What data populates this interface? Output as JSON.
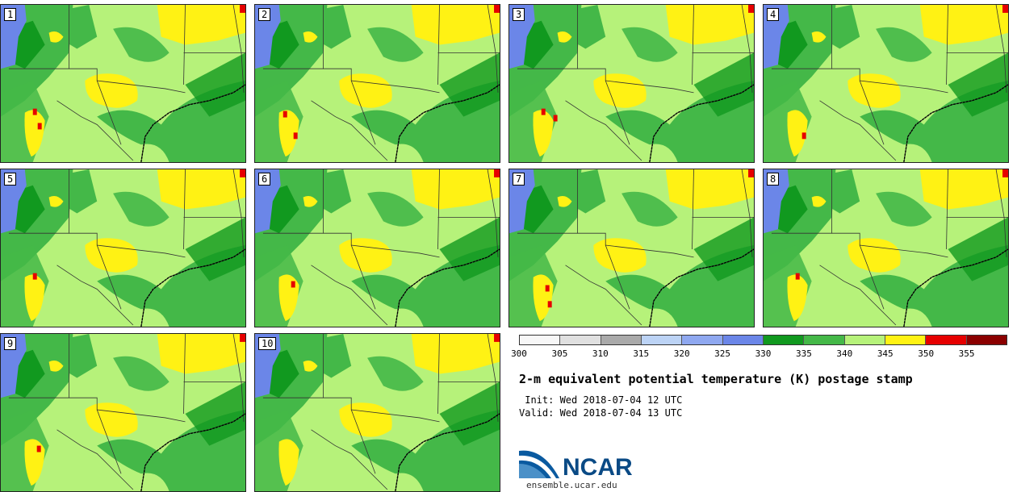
{
  "panels": [
    {
      "label": "1",
      "hot": [
        [
          40,
          130
        ],
        [
          46,
          148
        ]
      ]
    },
    {
      "label": "2",
      "hot": [
        [
          35,
          133
        ],
        [
          48,
          160
        ]
      ]
    },
    {
      "label": "3",
      "hot": [
        [
          40,
          130
        ],
        [
          55,
          138
        ]
      ]
    },
    {
      "label": "4",
      "hot": [
        [
          48,
          160
        ]
      ]
    },
    {
      "label": "5",
      "hot": [
        [
          40,
          130
        ]
      ]
    },
    {
      "label": "6",
      "hot": [
        [
          45,
          140
        ]
      ]
    },
    {
      "label": "7",
      "hot": [
        [
          45,
          145
        ],
        [
          48,
          165
        ]
      ]
    },
    {
      "label": "8",
      "hot": [
        [
          40,
          130
        ]
      ]
    },
    {
      "label": "9",
      "hot": [
        [
          45,
          140
        ]
      ]
    },
    {
      "label": "10",
      "hot": []
    }
  ],
  "colorbar": {
    "ticks": [
      "300",
      "305",
      "310",
      "315",
      "320",
      "325",
      "330",
      "335",
      "340",
      "345",
      "350",
      "355"
    ],
    "colors": [
      "#f7f7f7",
      "#e0e0e0",
      "#aaaaaa",
      "#bcd3f5",
      "#8fa8f0",
      "#6b86e8",
      "#11991f",
      "#44b848",
      "#b6f27a",
      "#fff214",
      "#e60000",
      "#8b0000"
    ]
  },
  "title": "2-m equivalent potential temperature (K) postage stamp",
  "init": " Init: Wed 2018-07-04 12 UTC",
  "valid": "Valid: Wed 2018-07-04 13 UTC",
  "logo": {
    "text": "NCAR",
    "url": "ensemble.ucar.edu"
  }
}
